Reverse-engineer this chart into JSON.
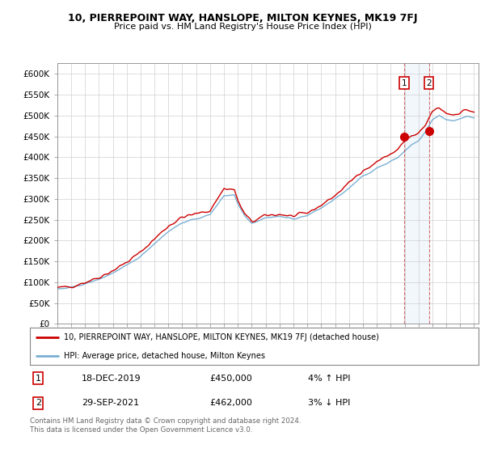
{
  "title1": "10, PIERREPOINT WAY, HANSLOPE, MILTON KEYNES, MK19 7FJ",
  "title2": "Price paid vs. HM Land Registry's House Price Index (HPI)",
  "ylabel_ticks": [
    "£0",
    "£50K",
    "£100K",
    "£150K",
    "£200K",
    "£250K",
    "£300K",
    "£350K",
    "£400K",
    "£450K",
    "£500K",
    "£550K",
    "£600K"
  ],
  "ytick_vals": [
    0,
    50000,
    100000,
    150000,
    200000,
    250000,
    300000,
    350000,
    400000,
    450000,
    500000,
    550000,
    600000
  ],
  "ylim": [
    0,
    625000
  ],
  "xlim_start": 1995.0,
  "xlim_end": 2025.3,
  "legend_line1": "10, PIERREPOINT WAY, HANSLOPE, MILTON KEYNES, MK19 7FJ (detached house)",
  "legend_line2": "HPI: Average price, detached house, Milton Keynes",
  "annotation1_label": "1",
  "annotation1_date": "18-DEC-2019",
  "annotation1_price": "£450,000",
  "annotation1_hpi": "4% ↑ HPI",
  "annotation2_label": "2",
  "annotation2_date": "29-SEP-2021",
  "annotation2_price": "£462,000",
  "annotation2_hpi": "3% ↓ HPI",
  "footer": "Contains HM Land Registry data © Crown copyright and database right 2024.\nThis data is licensed under the Open Government Licence v3.0.",
  "line1_color": "#cc0000",
  "line2_color": "#7ab0d4",
  "shade_color": "#ddeeff",
  "background_color": "#ffffff",
  "grid_color": "#d0d0d0",
  "purchase1_x": 2019.97,
  "purchase1_y": 450000,
  "purchase2_x": 2021.75,
  "purchase2_y": 462000
}
